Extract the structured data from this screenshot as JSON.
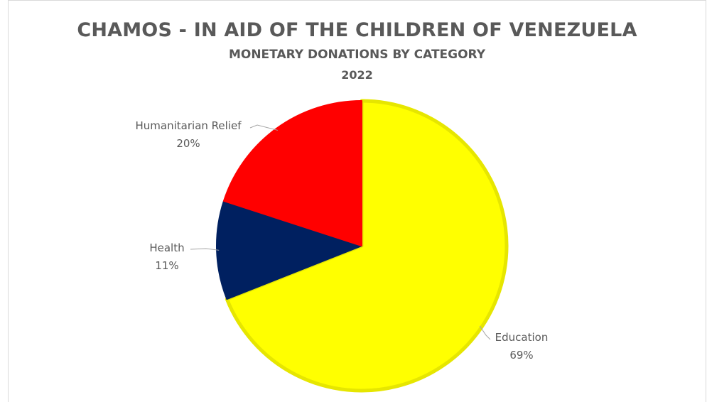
{
  "chart_data": {
    "type": "pie",
    "title": "CHAMOS - IN AID OF THE CHILDREN OF VENEZUELA",
    "subtitle": "MONETARY DONATIONS BY CATEGORY",
    "year_label": "2022",
    "categories": [
      "Education",
      "Health",
      "Humanitarian Relief"
    ],
    "values": [
      69,
      11,
      20
    ],
    "value_labels": [
      "69%",
      "11%",
      "20%"
    ],
    "colors": [
      "#FFFF00",
      "#002060",
      "#FF0000"
    ],
    "edge_colors": [
      "#E6E600",
      "#002060",
      "#FF0000"
    ],
    "start": "12 o'clock",
    "direction": "clockwise",
    "legend": "none"
  }
}
